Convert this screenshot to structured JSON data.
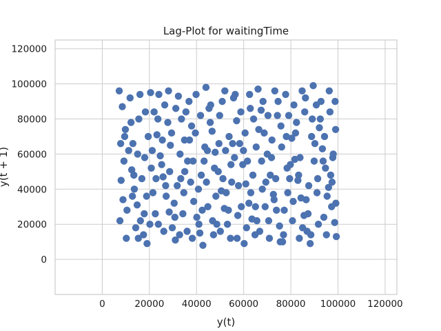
{
  "chart_data": {
    "type": "scatter",
    "title": "Lag-Plot for waitingTime",
    "xlabel": "y(t)",
    "ylabel": "y(t + 1)",
    "xlim": [
      -20000,
      125000
    ],
    "ylim": [
      -20000,
      125000
    ],
    "xticks": [
      0,
      20000,
      40000,
      60000,
      80000,
      100000,
      120000
    ],
    "yticks": [
      0,
      20000,
      40000,
      60000,
      80000,
      100000,
      120000
    ],
    "xtick_labels": [
      "0",
      "20000",
      "40000",
      "60000",
      "80000",
      "100000",
      "120000"
    ],
    "ytick_labels": [
      "0",
      "20000",
      "40000",
      "60000",
      "80000",
      "100000",
      "120000"
    ],
    "grid": true,
    "marker_color": "#4c72b0",
    "points": [
      [
        7200,
        96000
      ],
      [
        8500,
        87000
      ],
      [
        9800,
        74000
      ],
      [
        11200,
        62000
      ],
      [
        12500,
        51000
      ],
      [
        13600,
        40000
      ],
      [
        14800,
        31000
      ],
      [
        16200,
        22000
      ],
      [
        17500,
        14000
      ],
      [
        19000,
        9000
      ],
      [
        20500,
        95000
      ],
      [
        22000,
        84000
      ],
      [
        23200,
        71000
      ],
      [
        24600,
        59000
      ],
      [
        25800,
        47000
      ],
      [
        27100,
        36000
      ],
      [
        28400,
        27000
      ],
      [
        29700,
        18000
      ],
      [
        31000,
        11000
      ],
      [
        32300,
        93000
      ],
      [
        33600,
        80000
      ],
      [
        34900,
        68000
      ],
      [
        36200,
        56000
      ],
      [
        37500,
        44000
      ],
      [
        38800,
        33000
      ],
      [
        40100,
        24000
      ],
      [
        41400,
        15000
      ],
      [
        42700,
        8000
      ],
      [
        44000,
        98000
      ],
      [
        45300,
        86000
      ],
      [
        46600,
        73000
      ],
      [
        47900,
        61000
      ],
      [
        49200,
        50000
      ],
      [
        50500,
        39000
      ],
      [
        51800,
        29000
      ],
      [
        53100,
        20000
      ],
      [
        54400,
        12000
      ],
      [
        55700,
        92000
      ],
      [
        57000,
        79000
      ],
      [
        58300,
        66000
      ],
      [
        59600,
        54000
      ],
      [
        60900,
        43000
      ],
      [
        62200,
        32000
      ],
      [
        63500,
        23000
      ],
      [
        64800,
        14000
      ],
      [
        66100,
        97000
      ],
      [
        67400,
        85000
      ],
      [
        68700,
        72000
      ],
      [
        70000,
        60000
      ],
      [
        71300,
        48000
      ],
      [
        72600,
        37000
      ],
      [
        73900,
        28000
      ],
      [
        75200,
        19000
      ],
      [
        76500,
        10000
      ],
      [
        77800,
        94000
      ],
      [
        79100,
        82000
      ],
      [
        80400,
        69000
      ],
      [
        81700,
        57000
      ],
      [
        83000,
        45000
      ],
      [
        84300,
        35000
      ],
      [
        85600,
        25000
      ],
      [
        86900,
        16000
      ],
      [
        88200,
        9000
      ],
      [
        89500,
        99000
      ],
      [
        90800,
        88000
      ],
      [
        92100,
        75000
      ],
      [
        93400,
        63000
      ],
      [
        94700,
        52000
      ],
      [
        96000,
        41000
      ],
      [
        97300,
        30000
      ],
      [
        98600,
        21000
      ],
      [
        99300,
        13000
      ],
      [
        8000,
        45000
      ],
      [
        10500,
        28000
      ],
      [
        13000,
        66000
      ],
      [
        15500,
        80000
      ],
      [
        18000,
        58000
      ],
      [
        21500,
        38000
      ],
      [
        23800,
        20000
      ],
      [
        26500,
        88000
      ],
      [
        28900,
        65000
      ],
      [
        31800,
        42000
      ],
      [
        34200,
        26000
      ],
      [
        36800,
        90000
      ],
      [
        39500,
        72000
      ],
      [
        42000,
        48000
      ],
      [
        44800,
        30000
      ],
      [
        47200,
        14000
      ],
      [
        49800,
        82000
      ],
      [
        52300,
        62000
      ],
      [
        54900,
        44000
      ],
      [
        57500,
        25000
      ],
      [
        60200,
        9000
      ],
      [
        62800,
        86000
      ],
      [
        65300,
        64000
      ],
      [
        67900,
        40000
      ],
      [
        70600,
        22000
      ],
      [
        73200,
        96000
      ],
      [
        75800,
        76000
      ],
      [
        78400,
        52000
      ],
      [
        81000,
        33000
      ],
      [
        83600,
        12000
      ],
      [
        86200,
        92000
      ],
      [
        88800,
        70000
      ],
      [
        91400,
        46000
      ],
      [
        94000,
        24000
      ],
      [
        96600,
        84000
      ],
      [
        98000,
        60000
      ],
      [
        7500,
        22000
      ],
      [
        9200,
        56000
      ],
      [
        11800,
        92000
      ],
      [
        14200,
        18000
      ],
      [
        16800,
        46000
      ],
      [
        19500,
        70000
      ],
      [
        22500,
        26000
      ],
      [
        25200,
        54000
      ],
      [
        27800,
        78000
      ],
      [
        30500,
        32000
      ],
      [
        33000,
        60000
      ],
      [
        35500,
        84000
      ],
      [
        38200,
        12000
      ],
      [
        40800,
        40000
      ],
      [
        43500,
        64000
      ],
      [
        46000,
        88000
      ],
      [
        48600,
        20000
      ],
      [
        51200,
        46000
      ],
      [
        53800,
        70000
      ],
      [
        56400,
        94000
      ],
      [
        59000,
        30000
      ],
      [
        61600,
        56000
      ],
      [
        64200,
        80000
      ],
      [
        66800,
        16000
      ],
      [
        69400,
        44000
      ],
      [
        72000,
        68000
      ],
      [
        74600,
        90000
      ],
      [
        77200,
        28000
      ],
      [
        79800,
        54000
      ],
      [
        82400,
        78000
      ],
      [
        85000,
        18000
      ],
      [
        87600,
        42000
      ],
      [
        90200,
        66000
      ],
      [
        92800,
        90000
      ],
      [
        95400,
        36000
      ],
      [
        97800,
        58000
      ],
      [
        8800,
        34000
      ],
      [
        12200,
        78000
      ],
      [
        15000,
        60000
      ],
      [
        17800,
        26000
      ],
      [
        20800,
        52000
      ],
      [
        24000,
        94000
      ],
      [
        26900,
        42000
      ],
      [
        29400,
        72000
      ],
      [
        32800,
        14000
      ],
      [
        35000,
        50000
      ],
      [
        37900,
        76000
      ],
      [
        41000,
        20000
      ],
      [
        43200,
        56000
      ],
      [
        45800,
        78000
      ],
      [
        48200,
        36000
      ],
      [
        50900,
        90000
      ],
      [
        53500,
        28000
      ],
      [
        56100,
        58000
      ],
      [
        58800,
        84000
      ],
      [
        61200,
        18000
      ],
      [
        63900,
        48000
      ],
      [
        66400,
        74000
      ],
      [
        69100,
        30000
      ],
      [
        71800,
        58000
      ],
      [
        74300,
        82000
      ],
      [
        76900,
        14000
      ],
      [
        79500,
        46000
      ],
      [
        82000,
        72000
      ],
      [
        84800,
        96000
      ],
      [
        87300,
        26000
      ],
      [
        89900,
        56000
      ],
      [
        92500,
        80000
      ],
      [
        95100,
        14000
      ],
      [
        97500,
        44000
      ],
      [
        99000,
        74000
      ],
      [
        7800,
        66000
      ],
      [
        10200,
        12000
      ],
      [
        13400,
        48000
      ],
      [
        16000,
        94000
      ],
      [
        18800,
        36000
      ],
      [
        21200,
        62000
      ],
      [
        23600,
        80000
      ],
      [
        26100,
        16000
      ],
      [
        28600,
        50000
      ],
      [
        31200,
        86000
      ],
      [
        34600,
        38000
      ],
      [
        37000,
        68000
      ],
      [
        39800,
        94000
      ],
      [
        42400,
        28000
      ],
      [
        44600,
        62000
      ],
      [
        47600,
        52000
      ],
      [
        50100,
        16000
      ],
      [
        52600,
        38000
      ],
      [
        55300,
        66000
      ],
      [
        57800,
        42000
      ],
      [
        60600,
        72000
      ],
      [
        63000,
        38000
      ],
      [
        65600,
        22000
      ],
      [
        68200,
        90000
      ],
      [
        70900,
        12000
      ],
      [
        73600,
        46000
      ],
      [
        76100,
        64000
      ],
      [
        78700,
        38000
      ],
      [
        81300,
        88000
      ],
      [
        83900,
        58000
      ],
      [
        86500,
        34000
      ],
      [
        89100,
        80000
      ],
      [
        91700,
        20000
      ],
      [
        94300,
        70000
      ],
      [
        96900,
        48000
      ],
      [
        98800,
        90000
      ],
      [
        9500,
        70000
      ],
      [
        12800,
        36000
      ],
      [
        15300,
        12000
      ],
      [
        18300,
        84000
      ],
      [
        20200,
        20000
      ],
      [
        22800,
        46000
      ],
      [
        25500,
        68000
      ],
      [
        28100,
        96000
      ],
      [
        30800,
        24000
      ],
      [
        33300,
        46000
      ],
      [
        36000,
        16000
      ],
      [
        38500,
        56000
      ],
      [
        41700,
        82000
      ],
      [
        44200,
        44000
      ],
      [
        46800,
        22000
      ],
      [
        49500,
        66000
      ],
      [
        52000,
        96000
      ],
      [
        54600,
        54000
      ],
      [
        57200,
        12000
      ],
      [
        59900,
        62000
      ],
      [
        62500,
        94000
      ],
      [
        65000,
        30000
      ],
      [
        67600,
        56000
      ],
      [
        70300,
        82000
      ],
      [
        72900,
        34000
      ],
      [
        75500,
        10000
      ],
      [
        78100,
        70000
      ],
      [
        80700,
        22000
      ],
      [
        83300,
        48000
      ],
      [
        85900,
        84000
      ],
      [
        88500,
        14000
      ],
      [
        91100,
        38000
      ],
      [
        93700,
        56000
      ],
      [
        96300,
        96000
      ],
      [
        99100,
        32000
      ]
    ]
  }
}
